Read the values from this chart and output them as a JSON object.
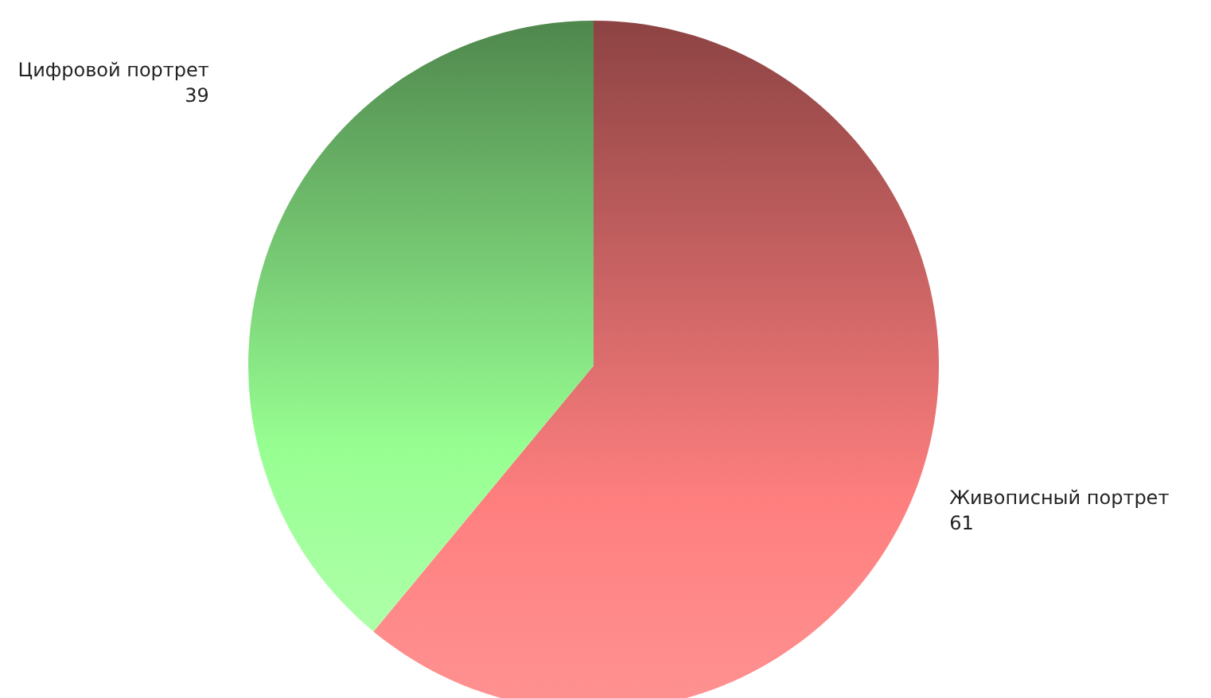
{
  "chart_data": {
    "type": "pie",
    "categories": [
      "Живописный портрет",
      "Цифровой портрет"
    ],
    "values": [
      61,
      39
    ],
    "colors": [
      "#e06a6a",
      "#7ed67a"
    ],
    "data_labels": true
  }
}
